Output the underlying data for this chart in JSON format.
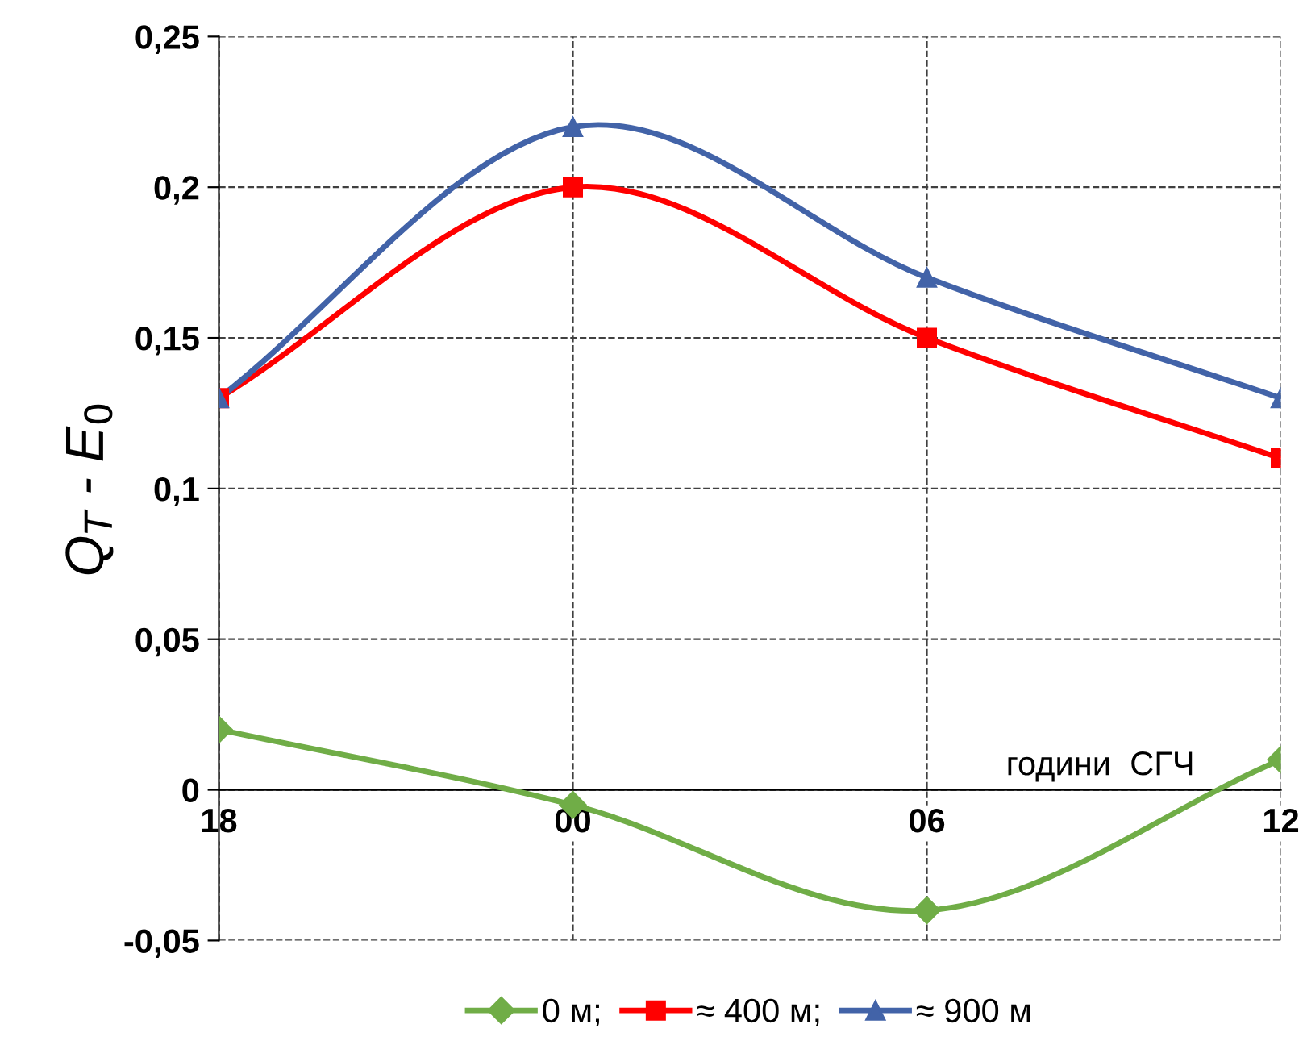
{
  "chart_data": {
    "type": "line",
    "categories": [
      "18",
      "00",
      "06",
      "12"
    ],
    "xlabel": "години  СГЧ",
    "ylabel": "Q$_{T}$ - E$_{0}$",
    "series": [
      {
        "name": "0 м;",
        "color": "#70ad47",
        "marker": "diamond",
        "values": [
          0.02,
          -0.005,
          -0.04,
          0.01
        ]
      },
      {
        "name": "≈ 400 м;",
        "color": "#ff0000",
        "marker": "square",
        "values": [
          0.13,
          0.2,
          0.15,
          0.11
        ]
      },
      {
        "name": "≈ 900 м",
        "color": "#4263a8",
        "marker": "triangle",
        "values": [
          0.13,
          0.22,
          0.17,
          0.13
        ]
      }
    ],
    "ylim": [
      -0.05,
      0.25
    ],
    "yticks": [
      {
        "value": -0.05,
        "label": "-0,05"
      },
      {
        "value": 0,
        "label": "0"
      },
      {
        "value": 0.05,
        "label": "0,05"
      },
      {
        "value": 0.1,
        "label": "0,1"
      },
      {
        "value": 0.15,
        "label": "0,15"
      },
      {
        "value": 0.2,
        "label": "0,2"
      },
      {
        "value": 0.25,
        "label": "0,25"
      }
    ],
    "grid": true,
    "legend": "bottom",
    "line_style": "solid"
  }
}
